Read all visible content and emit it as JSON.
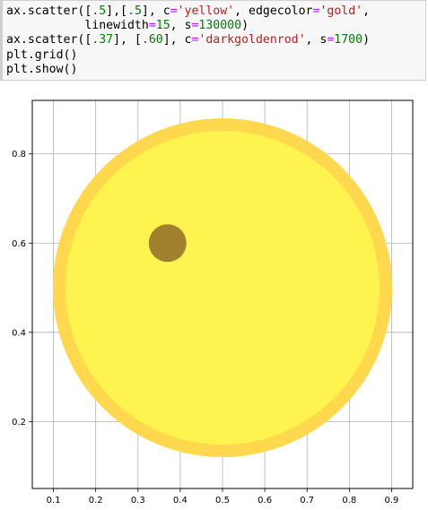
{
  "code_cell": {
    "lines": [
      [
        {
          "t": "ax.scatter([",
          "c": ""
        },
        {
          "t": ".5",
          "c": "num"
        },
        {
          "t": "],[",
          "c": ""
        },
        {
          "t": ".5",
          "c": "num"
        },
        {
          "t": "], c",
          "c": ""
        },
        {
          "t": "=",
          "c": "op"
        },
        {
          "t": "'yellow'",
          "c": "str"
        },
        {
          "t": ", edgecolor",
          "c": ""
        },
        {
          "t": "=",
          "c": "op"
        },
        {
          "t": "'gold'",
          "c": "str"
        },
        {
          "t": ",",
          "c": ""
        }
      ],
      [
        {
          "t": "           linewidth",
          "c": ""
        },
        {
          "t": "=",
          "c": "op"
        },
        {
          "t": "15",
          "c": "num"
        },
        {
          "t": ", s",
          "c": ""
        },
        {
          "t": "=",
          "c": "op"
        },
        {
          "t": "130000",
          "c": "num"
        },
        {
          "t": ")",
          "c": ""
        }
      ],
      [
        {
          "t": "ax.scatter([",
          "c": ""
        },
        {
          "t": ".37",
          "c": "num"
        },
        {
          "t": "], [",
          "c": ""
        },
        {
          "t": ".60",
          "c": "num"
        },
        {
          "t": "], c",
          "c": ""
        },
        {
          "t": "=",
          "c": "op"
        },
        {
          "t": "'darkgoldenrod'",
          "c": "str"
        },
        {
          "t": ", s",
          "c": ""
        },
        {
          "t": "=",
          "c": "op"
        },
        {
          "t": "1700",
          "c": "num"
        },
        {
          "t": ")",
          "c": ""
        }
      ],
      [
        {
          "t": "plt.grid()",
          "c": ""
        }
      ],
      [
        {
          "t": "plt.show()",
          "c": ""
        }
      ]
    ]
  },
  "chart_data": {
    "type": "scatter",
    "xlim": [
      0.05,
      0.95
    ],
    "ylim": [
      0.05,
      0.92
    ],
    "grid": true,
    "x_ticks": [
      {
        "value": 0.1,
        "label": "0.1"
      },
      {
        "value": 0.2,
        "label": "0.2"
      },
      {
        "value": 0.3,
        "label": "0.3"
      },
      {
        "value": 0.4,
        "label": "0.4"
      },
      {
        "value": 0.5,
        "label": "0.5"
      },
      {
        "value": 0.6,
        "label": "0.6"
      },
      {
        "value": 0.7,
        "label": "0.7"
      },
      {
        "value": 0.8,
        "label": "0.8"
      },
      {
        "value": 0.9,
        "label": "0.9"
      }
    ],
    "y_ticks": [
      {
        "value": 0.2,
        "label": "0.2"
      },
      {
        "value": 0.4,
        "label": "0.4"
      },
      {
        "value": 0.6,
        "label": "0.6"
      },
      {
        "value": 0.8,
        "label": "0.8"
      }
    ],
    "points": [
      {
        "x": 0.5,
        "y": 0.5,
        "fill": "#fff44f",
        "edgecolor": "#ffd84e"
      },
      {
        "x": 0.37,
        "y": 0.6,
        "fill": "#9c7a2c",
        "edgecolor": "#9c7a2c"
      }
    ]
  }
}
